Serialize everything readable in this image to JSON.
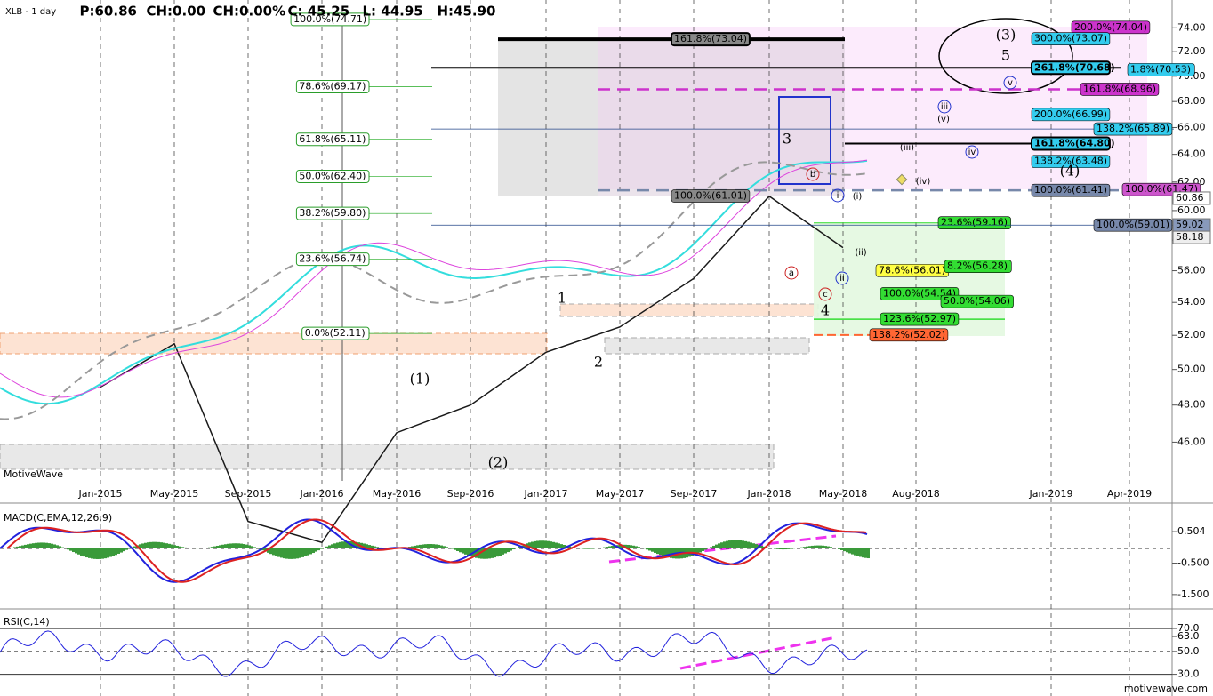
{
  "header": {
    "items": [
      "XLB - 1 day",
      "P:60.86",
      "CH:0.00",
      "CH:0.00%",
      "C: 45.25",
      "L: 44.95",
      "H:45.90"
    ]
  },
  "chart_data": {
    "type": "line",
    "log_scale": true,
    "grid": true,
    "ylim": [
      44,
      76.4
    ],
    "yticks": [
      {
        "value": 46,
        "label": "46.00"
      },
      {
        "value": 48,
        "label": "48.00"
      },
      {
        "value": 50,
        "label": "50.00"
      },
      {
        "value": 52,
        "label": "52.00"
      },
      {
        "value": 54,
        "label": "54.00"
      },
      {
        "value": 56,
        "label": "56.00"
      },
      {
        "value": 58,
        "label": "58.00"
      },
      {
        "value": 60,
        "label": "60.00"
      },
      {
        "value": 62,
        "label": "62.00"
      },
      {
        "value": 64,
        "label": "64.00"
      },
      {
        "value": 66,
        "label": "66.00"
      },
      {
        "value": 68,
        "label": "68.00"
      },
      {
        "value": 70,
        "label": "70.00"
      },
      {
        "value": 72,
        "label": "72.00"
      },
      {
        "value": 74,
        "label": "74.00"
      }
    ],
    "xticks": [
      "Jan-2015",
      "May-2015",
      "Sep-2015",
      "Jan-2016",
      "May-2016",
      "Sep-2016",
      "Jan-2017",
      "May-2017",
      "Sep-2017",
      "Jan-2018",
      "May-2018",
      "Aug-2018",
      "Jan-2019",
      "Apr-2019"
    ],
    "x": [
      "Jan-2015",
      "May-2015",
      "Sep-2015",
      "Jan-2016",
      "May-2016",
      "Sep-2016",
      "Jan-2017",
      "May-2017",
      "Sep-2017",
      "Jan-2018",
      "May-2018"
    ],
    "series": [
      {
        "color": "#1a1a1a",
        "values": [
          49,
          51.5,
          42,
          41,
          46.5,
          48,
          51,
          52.5,
          55.5,
          61,
          57.5
        ]
      }
    ],
    "price_tags": [
      {
        "value": 60.86,
        "label": "60.86",
        "color": "#ffffff"
      },
      {
        "value": 59.02,
        "label": "59.02",
        "color": "#8899bb"
      },
      {
        "value": 58.18,
        "label": "58.18",
        "color": "#eeeeee"
      }
    ],
    "fib_left": [
      {
        "label": "100.0%(74.71)",
        "price": 74.71
      },
      {
        "label": "78.6%(69.17)",
        "price": 69.17
      },
      {
        "label": "61.8%(65.11)",
        "price": 65.11
      },
      {
        "label": "50.0%(62.40)",
        "price": 62.4
      },
      {
        "label": "38.2%(59.80)",
        "price": 59.8
      },
      {
        "label": "23.6%(56.74)",
        "price": 56.74
      },
      {
        "label": "0.0%(52.11)",
        "price": 52.11
      }
    ],
    "fib_levels": [
      {
        "label": "200.0%(74.04)",
        "price": 74.04,
        "color": "#cc33cc"
      },
      {
        "label": "300.0%(73.07)",
        "price": 73.07,
        "color": "#33ccee"
      },
      {
        "label": "161.8%(73.04)",
        "price": 73.04,
        "color": "#888888"
      },
      {
        "label": "261.8%(70.68)",
        "price": 70.68,
        "color": "#33ccee"
      },
      {
        "label": "1.8%(70.53)",
        "price": 70.53,
        "color": "#33ccee"
      },
      {
        "label": "161.8%(68.96)",
        "price": 68.96,
        "color": "#cc33cc"
      },
      {
        "label": "200.0%(66.99)",
        "price": 66.99,
        "color": "#33ccee"
      },
      {
        "label": "138.2%(65.89)",
        "price": 65.89,
        "color": "#33ccee"
      },
      {
        "label": "161.8%(64.80)",
        "price": 64.8,
        "color": "#33ccee"
      },
      {
        "label": "138.2%(63.48)",
        "price": 63.48,
        "color": "#33ccee"
      },
      {
        "label": "100.0%(61.41)",
        "price": 61.41,
        "color": "#7788aa"
      },
      {
        "label": "100.0%(61.47)",
        "price": 61.47,
        "color": "#cc55cc"
      },
      {
        "label": "100.0%(61.01)",
        "price": 61.01,
        "color": "#888888"
      },
      {
        "label": "23.6%(59.16)",
        "price": 59.16,
        "color": "#33dd33"
      },
      {
        "label": "100.0%(59.01)",
        "price": 59.01,
        "color": "#7788aa"
      },
      {
        "label": "78.6%(56.01)",
        "price": 56.01,
        "color": "#ffff44"
      },
      {
        "label": "8.2%(56.28)",
        "price": 56.28,
        "color": "#33dd33"
      },
      {
        "label": "100.0%(54.54)",
        "price": 54.54,
        "color": "#33dd33"
      },
      {
        "label": "50.0%(54.06)",
        "price": 54.06,
        "color": "#33dd33"
      },
      {
        "label": "123.6%(52.97)",
        "price": 52.97,
        "color": "#33dd33"
      },
      {
        "label": "138.2%(52.02)",
        "price": 52.02,
        "color": "#ff6633"
      }
    ],
    "wave_labels": [
      "(3)",
      "5",
      "3",
      "1",
      "2",
      "4",
      "(1)",
      "(2)",
      "(4)",
      "iii",
      "v",
      "iv",
      "i",
      "ii",
      "a",
      "b",
      "c",
      "(i)",
      "(ii)",
      "(iii)",
      "(iv)",
      "(v)"
    ]
  },
  "macd": {
    "title": "MACD(C,EMA,12,26,9)",
    "ylim": [
      -1.9,
      1.27
    ],
    "yticks": [
      {
        "value": 0.504,
        "label": "0.504"
      },
      {
        "value": -0.5,
        "label": "-0.500"
      },
      {
        "value": -1.5,
        "label": "-1.500"
      }
    ]
  },
  "rsi": {
    "title": "RSI(C,14)",
    "ylim": [
      12.6,
      84.8
    ],
    "yticks": [
      {
        "value": 70,
        "label": "70.0"
      },
      {
        "value": 63,
        "label": "63.0"
      },
      {
        "value": 50,
        "label": "50.0"
      },
      {
        "value": 30,
        "label": "30.0"
      }
    ]
  },
  "watermark": "MotiveWave",
  "footer": "motivewave.com"
}
